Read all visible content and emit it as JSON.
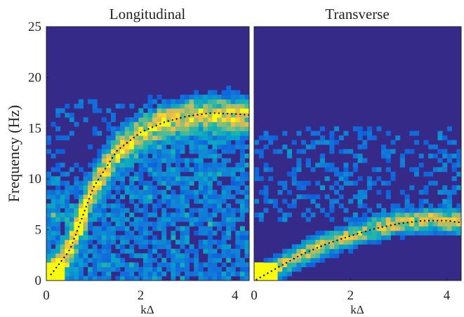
{
  "chart_data": [
    {
      "type": "heatmap",
      "title": "Longitudinal",
      "xlabel": "kΔ",
      "ylabel": "Frequency (Hz)",
      "xlim": [
        0,
        4.3
      ],
      "ylim": [
        0,
        25
      ],
      "xticks": [
        "0",
        "2",
        "4"
      ],
      "yticks": [
        "0",
        "5",
        "10",
        "15",
        "20",
        "25"
      ],
      "colormap": "parula",
      "colors": {
        "low": "#352a87",
        "mid": "#1fa5c8",
        "high": "#f9e01b"
      },
      "intensity_ridges": [
        {
          "shape": "dispersion",
          "peak_hz": 16.5,
          "width_hz": 1.6,
          "strength": 0.7
        },
        {
          "shape": "low_band",
          "k_max": 0.9,
          "strength": 0.6
        }
      ],
      "dispersion_curve": {
        "style": "dotted",
        "color": "#000000",
        "k": [
          0.1,
          0.5,
          1.0,
          1.5,
          2.0,
          2.5,
          3.0,
          3.5,
          4.0,
          4.3
        ],
        "f": [
          0.6,
          3.0,
          9.2,
          12.8,
          14.6,
          15.6,
          16.2,
          16.5,
          16.4,
          16.3
        ]
      }
    },
    {
      "type": "heatmap",
      "title": "Transverse",
      "xlabel": "kΔ",
      "xlim": [
        0,
        4.3
      ],
      "ylim": [
        0,
        25
      ],
      "xticks": [
        "0",
        "2",
        "4"
      ],
      "colormap": "parula",
      "colors": {
        "low": "#352a87",
        "mid": "#1fa5c8",
        "high": "#f9e01b"
      },
      "intensity_ridges": [
        {
          "shape": "dispersion",
          "peak_hz": 5.9,
          "width_hz": 1.0,
          "strength": 0.75
        }
      ],
      "dispersion_curve": {
        "style": "dotted",
        "color": "#000000",
        "k": [
          0.05,
          0.5,
          1.0,
          1.5,
          2.0,
          2.5,
          3.0,
          3.5,
          4.0,
          4.3
        ],
        "f": [
          0.1,
          1.3,
          2.6,
          3.6,
          4.4,
          5.1,
          5.6,
          5.9,
          5.9,
          5.7
        ]
      }
    }
  ]
}
